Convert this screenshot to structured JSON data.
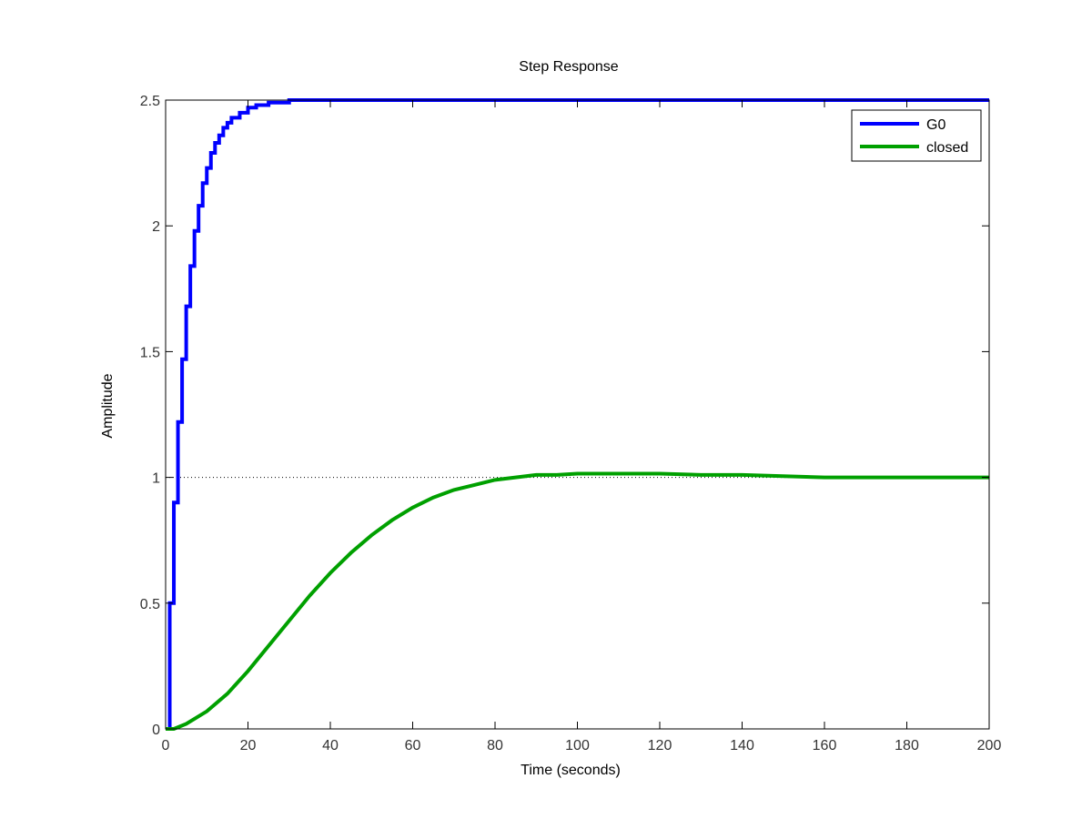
{
  "chart_data": {
    "type": "line",
    "title": "Step Response",
    "xlabel": "Time (seconds)",
    "ylabel": "Amplitude",
    "xlim": [
      0,
      200
    ],
    "ylim": [
      0,
      2.5
    ],
    "xticks": [
      0,
      20,
      40,
      60,
      80,
      100,
      120,
      140,
      160,
      180,
      200
    ],
    "yticks": [
      0,
      0.5,
      1,
      1.5,
      2,
      2.5
    ],
    "xtick_labels": [
      "0",
      "20",
      "40",
      "60",
      "80",
      "100",
      "120",
      "140",
      "160",
      "180",
      "200"
    ],
    "ytick_labels": [
      "0",
      "0.5",
      "1",
      "1.5",
      "2",
      "2.5"
    ],
    "grid": false,
    "legend_position": "top-right",
    "reference_line": {
      "y": 1,
      "style": "dotted"
    },
    "series": [
      {
        "name": "G0",
        "color": "#0000ff",
        "step": true,
        "x": [
          0,
          1,
          2,
          3,
          4,
          5,
          6,
          7,
          8,
          9,
          10,
          11,
          12,
          13,
          14,
          15,
          16,
          18,
          20,
          22,
          25,
          30,
          35,
          40,
          60,
          80,
          100,
          120,
          140,
          160,
          180,
          200
        ],
        "y": [
          0,
          0.5,
          0.9,
          1.22,
          1.47,
          1.68,
          1.84,
          1.98,
          2.08,
          2.17,
          2.23,
          2.29,
          2.33,
          2.36,
          2.39,
          2.41,
          2.43,
          2.45,
          2.47,
          2.48,
          2.49,
          2.5,
          2.5,
          2.5,
          2.5,
          2.5,
          2.5,
          2.5,
          2.5,
          2.5,
          2.5,
          2.5
        ]
      },
      {
        "name": "closed",
        "color": "#00a000",
        "step": false,
        "x": [
          0,
          2,
          5,
          10,
          15,
          20,
          25,
          30,
          35,
          40,
          45,
          50,
          55,
          60,
          65,
          70,
          75,
          80,
          85,
          90,
          95,
          100,
          110,
          120,
          130,
          140,
          150,
          160,
          170,
          180,
          190,
          200
        ],
        "y": [
          0,
          0.0,
          0.02,
          0.07,
          0.14,
          0.23,
          0.33,
          0.43,
          0.53,
          0.62,
          0.7,
          0.77,
          0.83,
          0.88,
          0.92,
          0.95,
          0.97,
          0.99,
          1.0,
          1.01,
          1.01,
          1.015,
          1.015,
          1.015,
          1.01,
          1.01,
          1.005,
          1.0,
          1.0,
          1.0,
          1.0,
          1.0
        ]
      }
    ]
  }
}
